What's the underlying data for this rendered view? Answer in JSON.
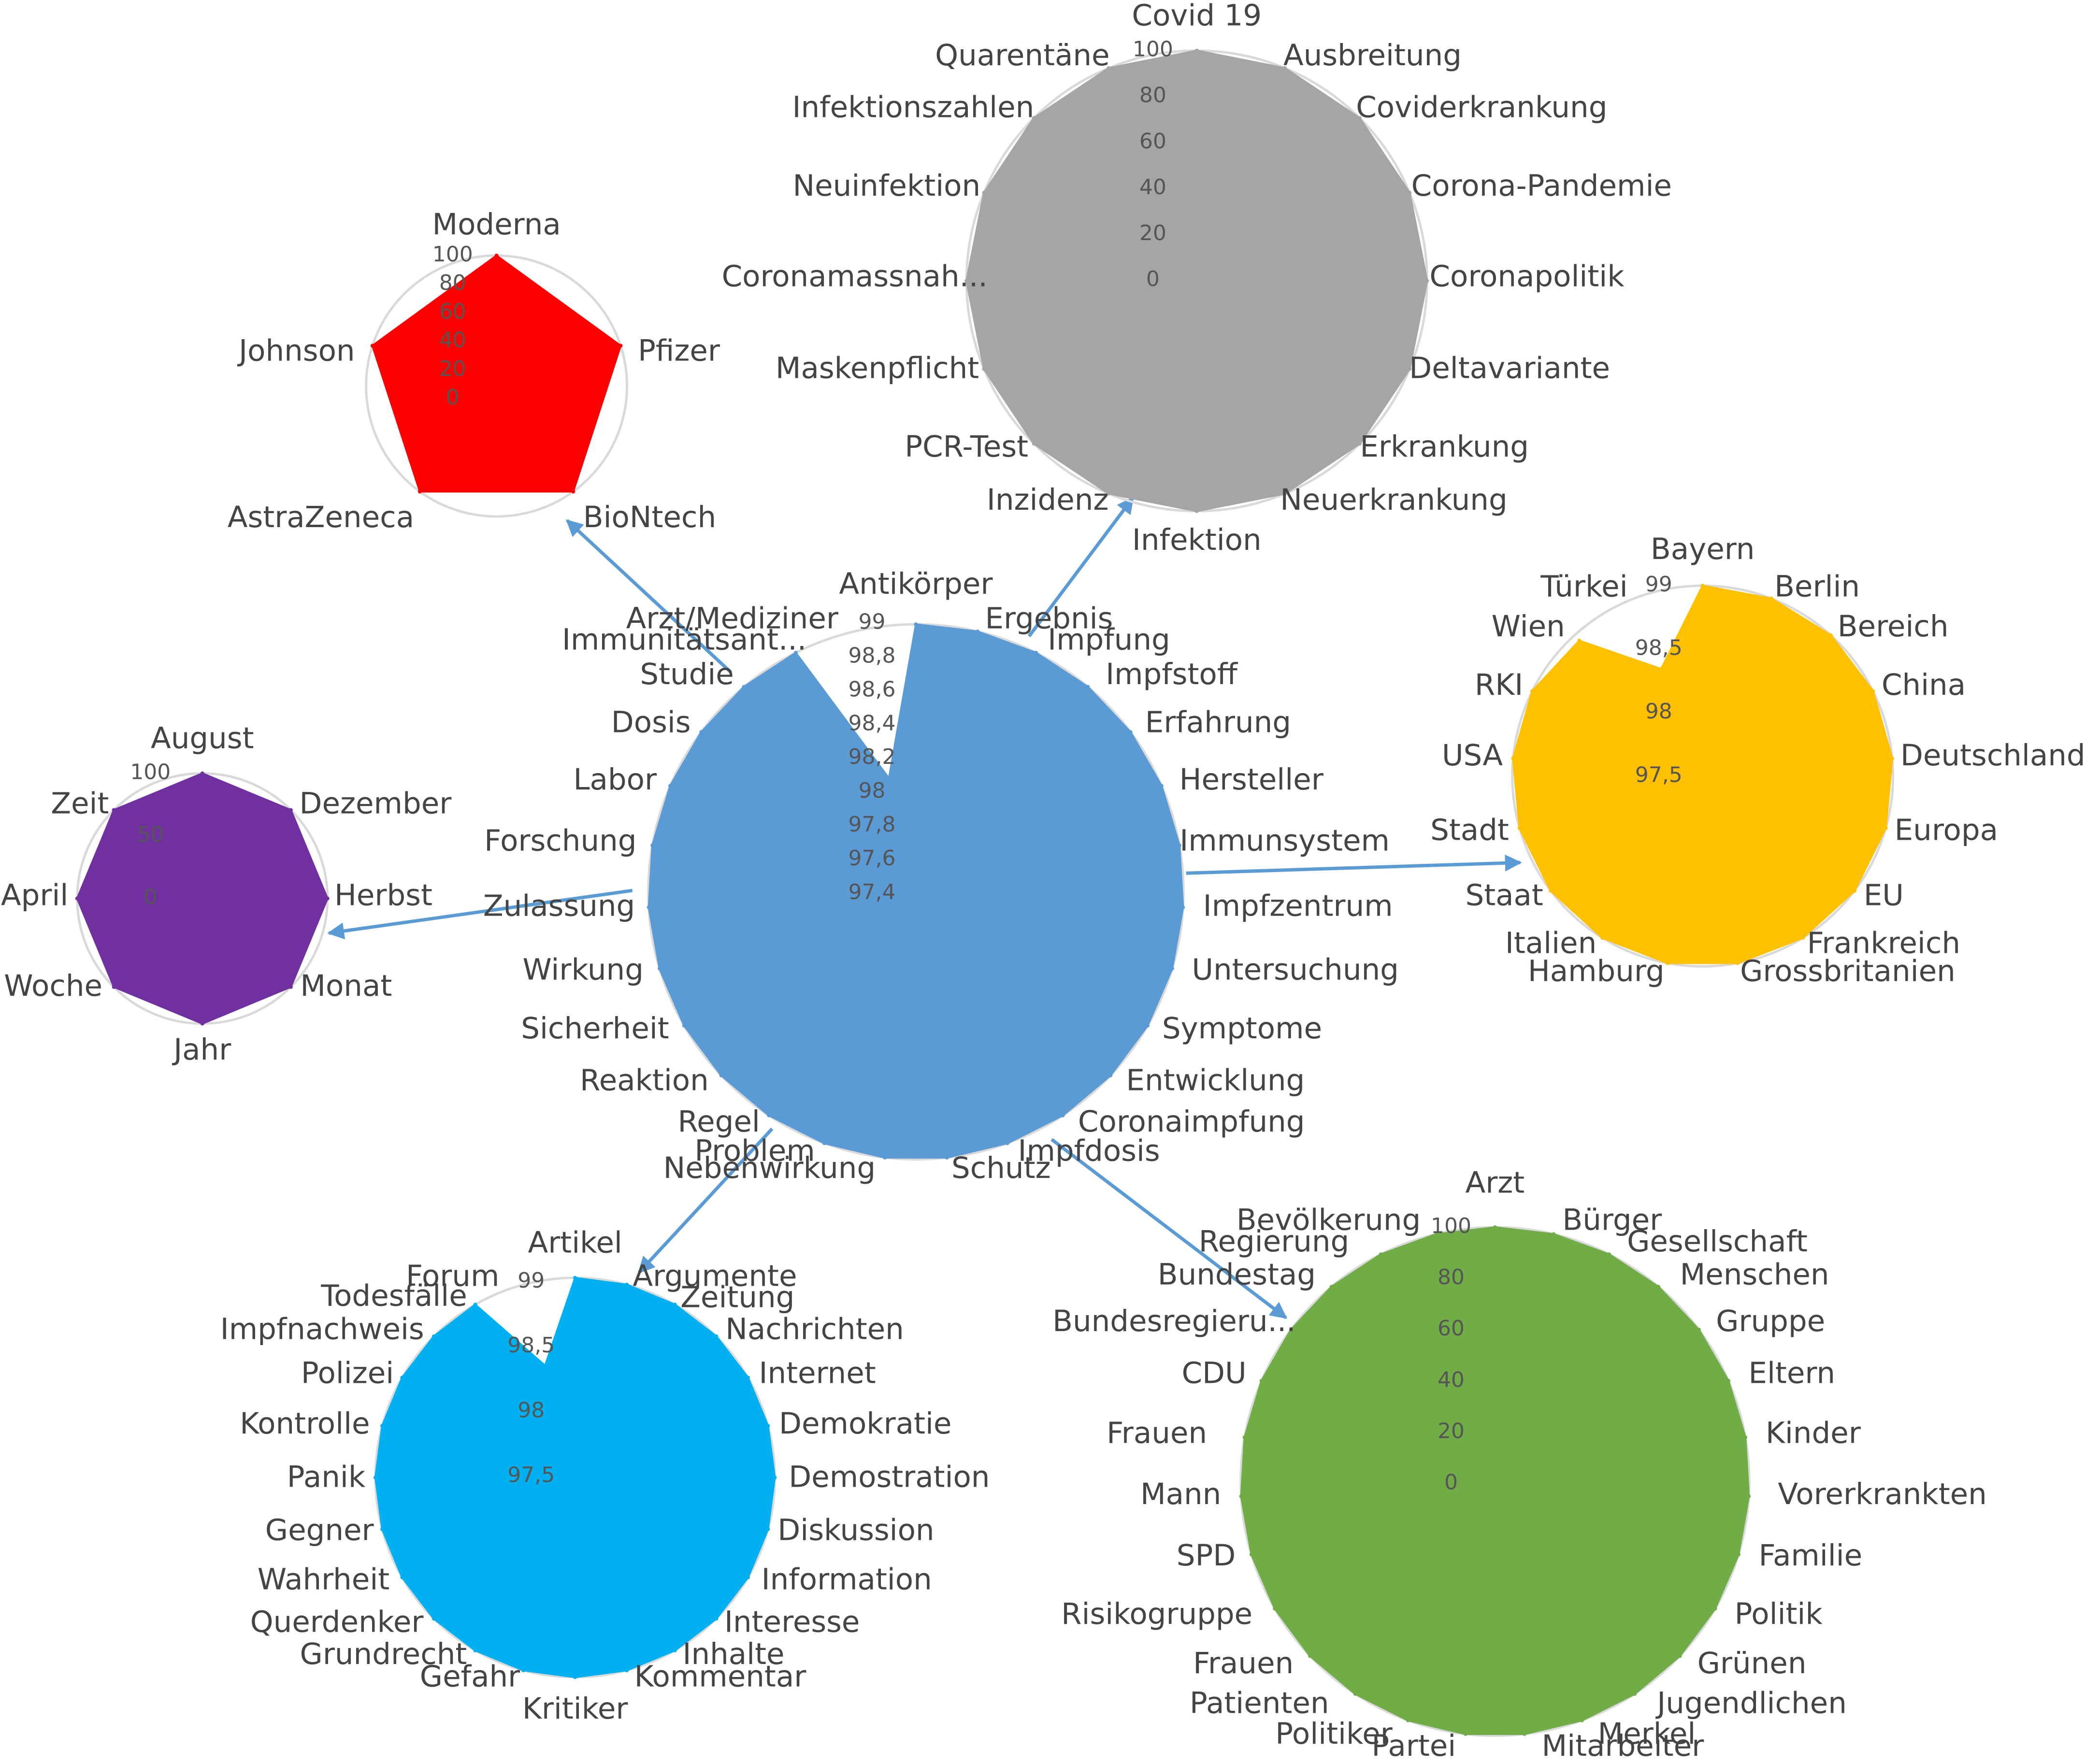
{
  "chart_data": [
    {
      "type": "radar",
      "color": "#5B9BD5",
      "tick_labels": [
        "99",
        "98,8",
        "98,6",
        "98,4",
        "98,2",
        "98",
        "97,8",
        "97,6",
        "97,4"
      ],
      "rmin": 97.4,
      "rmax": 99.0,
      "categories": [
        "Antikörper",
        "Ergebnis",
        "Impfung",
        "Impfstoff",
        "Erfahrung",
        "Hersteller",
        "Immunsystem",
        "Impfzentrum",
        "Untersuchung",
        "Symptome",
        "Entwicklung",
        "Coronaimpfung",
        "Impfdosis",
        "Schutz",
        "Nebenwirkung",
        "Problem",
        "Regel",
        "Reaktion",
        "Sicherheit",
        "Wirkung",
        "Zulassung",
        "Forschung",
        "Labor",
        "Dosis",
        "Studie",
        "Immunitätsant...",
        "Arzt/Mediziner"
      ],
      "values": [
        99,
        99,
        99,
        99,
        99,
        99,
        99,
        99,
        99,
        99,
        99,
        99,
        99,
        99,
        99,
        99,
        99,
        99,
        99,
        99,
        99,
        99,
        99,
        99,
        99,
        99,
        97.9
      ]
    },
    {
      "type": "radar",
      "color": "#FF0000",
      "tick_labels": [
        "100",
        "80",
        "60",
        "40",
        "20",
        "0"
      ],
      "rmin": 0,
      "rmax": 100,
      "categories": [
        "Moderna",
        "Pfizer",
        "BioNtech",
        "AstraZeneca",
        "Johnson"
      ],
      "values": [
        100,
        100,
        100,
        100,
        100
      ]
    },
    {
      "type": "radar",
      "color": "#A5A5A5",
      "tick_labels": [
        "100",
        "80",
        "60",
        "40",
        "20",
        "0"
      ],
      "rmin": 0,
      "rmax": 100,
      "categories": [
        "Covid 19",
        "Ausbreitung",
        "Coviderkrankung",
        "Corona-Pandemie",
        "Coronapolitik",
        "Deltavariante",
        "Erkrankung",
        "Neuerkrankung",
        "Infektion",
        "Inzidenz",
        "PCR-Test",
        "Maskenpflicht",
        "Coronamassnah...",
        "Neuinfektion",
        "Infektionszahlen",
        "Quarentäne"
      ],
      "values": [
        100,
        100,
        100,
        100,
        100,
        100,
        100,
        100,
        100,
        100,
        100,
        100,
        100,
        100,
        100,
        100
      ]
    },
    {
      "type": "radar",
      "color": "#7030A0",
      "tick_labels": [
        "100",
        "50",
        "0"
      ],
      "rmin": 0,
      "rmax": 100,
      "categories": [
        "August",
        "Dezember",
        "Herbst",
        "Monat",
        "Jahr",
        "Woche",
        "April",
        "Zeit"
      ],
      "values": [
        100,
        100,
        100,
        100,
        100,
        100,
        100,
        100
      ]
    },
    {
      "type": "radar",
      "color": "#FFC000",
      "tick_labels": [
        "99",
        "98,5",
        "98",
        "97,5"
      ],
      "rmin": 97.2,
      "rmax": 99.0,
      "categories": [
        "Bayern",
        "Berlin",
        "Bereich",
        "China",
        "Deutschland",
        "Europa",
        "EU",
        "Frankreich",
        "Grossbritanien",
        "Hamburg",
        "Italien",
        "Staat",
        "Stadt",
        "USA",
        "RKI",
        "Wien",
        "Türkei"
      ],
      "values": [
        99,
        99,
        99,
        99,
        99,
        99,
        99,
        99,
        99,
        99,
        99,
        99,
        99,
        99,
        99,
        98.9,
        97.95
      ]
    },
    {
      "type": "radar",
      "color": "#00B0F0",
      "tick_labels": [
        "99",
        "98,5",
        "98",
        "97,5"
      ],
      "rmin": 97.2,
      "rmax": 99.0,
      "categories": [
        "Artikel",
        "Argumente",
        "Zeitung",
        "Nachrichten",
        "Internet",
        "Demokratie",
        "Demostration",
        "Diskussion",
        "Information",
        "Interesse",
        "Inhalte",
        "Kommentar",
        "Kritiker",
        "Gefahr",
        "Grundrecht",
        "Querdenker",
        "Wahrheit",
        "Gegner",
        "Panik",
        "Kontrolle",
        "Polizei",
        "Impfnachweis",
        "Todesfälle",
        "Forum"
      ],
      "values": [
        99,
        99,
        99,
        99,
        99,
        99,
        99,
        99,
        99,
        99,
        99,
        99,
        99,
        99,
        99,
        99,
        99,
        99,
        99,
        99,
        99,
        99,
        99,
        97.95
      ]
    },
    {
      "type": "radar",
      "color": "#70AD47",
      "tick_labels": [
        "100",
        "80",
        "60",
        "40",
        "20",
        "0"
      ],
      "rmin": 0,
      "rmax": 100,
      "categories": [
        "Arzt",
        "Bürger",
        "Gesellschaft",
        "Menschen",
        "Gruppe",
        "Eltern",
        "Kinder",
        "Vorerkrankten",
        "Familie",
        "Politik",
        "Grünen",
        "Jugendlichen",
        "Merkel",
        "Mitarbeiter",
        "Partei",
        "Politiker",
        "Patienten",
        "Frauen",
        "Risikogruppe",
        "SPD",
        "Mann",
        "Frauen",
        "CDU",
        "Bundesregieru...",
        "Bundestag",
        "Regierung",
        "Bevölkerung"
      ],
      "values": [
        100,
        100,
        100,
        100,
        100,
        100,
        100,
        100,
        100,
        100,
        100,
        100,
        100,
        100,
        100,
        100,
        100,
        100,
        100,
        100,
        100,
        100,
        100,
        100,
        100,
        100,
        100
      ]
    }
  ]
}
